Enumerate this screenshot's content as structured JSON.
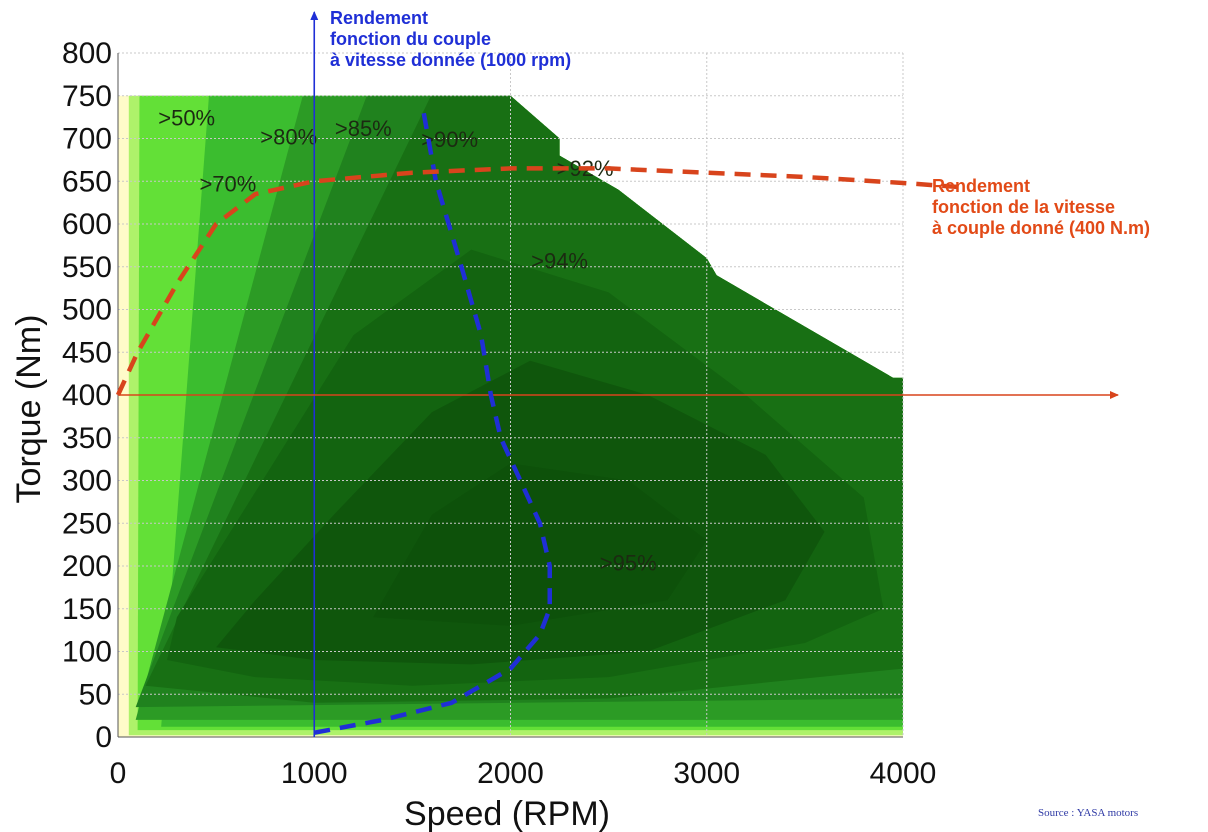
{
  "chart_data": {
    "type": "heatmap",
    "title": "",
    "xlabel": "Speed (RPM)",
    "ylabel": "Torque (Nm)",
    "xlim": [
      0,
      4000
    ],
    "ylim": [
      0,
      800
    ],
    "x_ticks": [
      0,
      1000,
      2000,
      3000,
      4000
    ],
    "y_ticks": [
      0,
      50,
      100,
      150,
      200,
      250,
      300,
      350,
      400,
      450,
      500,
      550,
      600,
      650,
      700,
      750,
      800
    ],
    "grid": true,
    "envelope": [
      {
        "x": 0,
        "y": 750
      },
      {
        "x": 2000,
        "y": 750
      },
      {
        "x": 2250,
        "y": 700
      },
      {
        "x": 2250,
        "y": 680
      },
      {
        "x": 2550,
        "y": 640
      },
      {
        "x": 3000,
        "y": 560
      },
      {
        "x": 3050,
        "y": 540
      },
      {
        "x": 3950,
        "y": 420
      },
      {
        "x": 4000,
        "y": 420
      },
      {
        "x": 4000,
        "y": 0
      }
    ],
    "contour_labels": [
      {
        "label": ">50%",
        "x": 350,
        "y": 715
      },
      {
        "label": ">80%",
        "x": 870,
        "y": 693
      },
      {
        "label": ">85%",
        "x": 1250,
        "y": 703
      },
      {
        "label": ">90%",
        "x": 1690,
        "y": 690
      },
      {
        "label": ">70%",
        "x": 560,
        "y": 638
      },
      {
        "label": ">92%",
        "x": 2380,
        "y": 656
      },
      {
        "label": ">94%",
        "x": 2250,
        "y": 548
      },
      {
        "label": ">95%",
        "x": 2600,
        "y": 195
      }
    ],
    "series": [
      {
        "name": "Rendement fonction du couple à vitesse donnée (1000 rpm)",
        "color": "#1f2fd6",
        "style": "dashed",
        "x": [
          1000,
          1350,
          1700,
          2000,
          2150,
          2200,
          2200,
          2150,
          2050,
          1950,
          1900,
          1850,
          1750,
          1620,
          1550
        ],
        "y": [
          5,
          20,
          40,
          80,
          120,
          150,
          200,
          250,
          300,
          350,
          400,
          470,
          550,
          650,
          740
        ]
      },
      {
        "name": "Rendement fonction de la vitesse à couple donné (400 N.m)",
        "color": "#d8441c",
        "style": "dashed",
        "x": [
          0,
          100,
          300,
          500,
          700,
          1000,
          1500,
          2000,
          2500,
          3000,
          3500,
          4000,
          4300
        ],
        "y": [
          400,
          450,
          530,
          600,
          635,
          650,
          660,
          665,
          665,
          660,
          655,
          648,
          643
        ]
      }
    ],
    "guides": [
      {
        "orientation": "vertical",
        "x": 1000,
        "color": "#1f2fd6"
      },
      {
        "orientation": "horizontal",
        "y": 400,
        "color": "#d8441c"
      }
    ],
    "annotations": [
      {
        "name": "blue",
        "color": "#1f2fd6",
        "lines": [
          "Rendement",
          "fonction du couple",
          "à vitesse donnée (1000 rpm)"
        ]
      },
      {
        "name": "orange",
        "color": "#e24a17",
        "lines": [
          "Rendement",
          "fonction de la vitesse",
          "à couple donné (400 N.m)"
        ]
      }
    ],
    "source": "Source : YASA motors",
    "colors": {
      "cream": "#fffbc9",
      "band50": "#aef26a",
      "band70": "#63e037",
      "band80": "#3bbd2f",
      "band85": "#2c9b25",
      "band90": "#20821e",
      "band92": "#187014",
      "band94": "#136410",
      "band95": "#0f560c",
      "gridline": "#c8c8c8"
    }
  }
}
